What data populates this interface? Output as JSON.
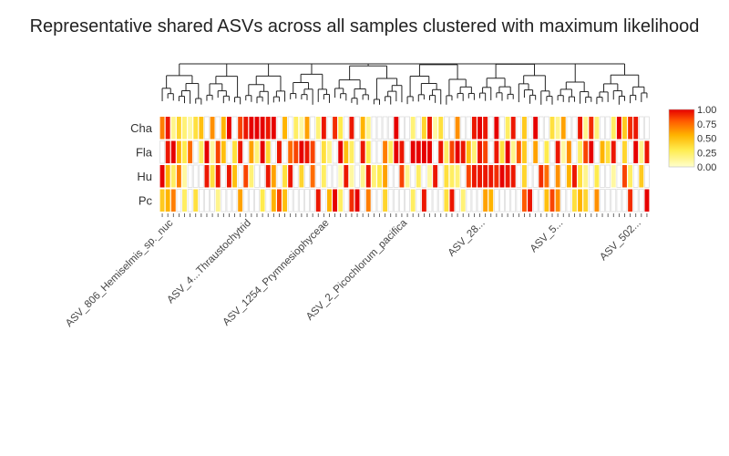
{
  "chart_data": {
    "type": "heatmap",
    "title": "Representative shared ASVs across all samples clustered with maximum likelihood",
    "xlabel": "",
    "ylabel": "",
    "rows": [
      "Cha",
      "Fla",
      "Hu",
      "Pc"
    ],
    "n_columns": 88,
    "column_labels": [
      "ASV_806_Hemiselmis_sp._nuc",
      "ASV_4...Thraustochytrid",
      "ASV_1254_Prymnesiophyceae",
      "ASV_2_Picochlorum_pacifica",
      "ASV_28...",
      "ASV_5...",
      "ASV_502..."
    ],
    "values": [
      [
        0.7,
        0.95,
        0.15,
        0.4,
        0.2,
        0.1,
        0.35,
        0.5,
        0.0,
        0.65,
        0.0,
        0.55,
        1.0,
        0.0,
        0.85,
        0.95,
        1.0,
        1.0,
        1.0,
        0.95,
        1.0,
        0.0,
        0.55,
        0.0,
        0.25,
        0.1,
        0.6,
        0.0,
        0.2,
        0.95,
        0.0,
        0.9,
        0.3,
        0.0,
        0.95,
        0.0,
        0.55,
        0.15,
        0.0,
        0.0,
        0.0,
        0.0,
        1.0,
        0.0,
        0.0,
        0.2,
        0.0,
        0.4,
        0.95,
        0.1,
        0.35,
        0.0,
        0.0,
        0.65,
        0.0,
        0.0,
        0.95,
        1.0,
        0.95,
        0.0,
        1.0,
        0.0,
        0.25,
        0.95,
        0.0,
        0.45,
        0.0,
        1.0,
        0.0,
        0.0,
        0.35,
        0.15,
        0.6,
        0.0,
        0.0,
        0.95,
        0.15,
        0.9,
        0.2,
        0.0,
        0.0,
        0.25,
        1.0,
        0.45,
        0.9,
        0.95,
        0.0,
        0.0
      ],
      [
        0.0,
        0.95,
        1.0,
        0.55,
        0.3,
        0.75,
        0.0,
        0.25,
        1.0,
        0.1,
        0.85,
        0.5,
        0.0,
        0.35,
        0.95,
        0.0,
        0.6,
        0.2,
        1.0,
        0.4,
        0.0,
        0.95,
        0.0,
        0.75,
        0.85,
        1.0,
        0.95,
        0.85,
        0.0,
        0.35,
        0.15,
        0.0,
        1.0,
        0.5,
        0.25,
        0.0,
        0.95,
        0.3,
        0.0,
        0.0,
        0.7,
        0.25,
        1.0,
        0.95,
        0.0,
        1.0,
        1.0,
        1.0,
        1.0,
        0.0,
        0.95,
        0.25,
        0.85,
        1.0,
        0.95,
        0.5,
        0.2,
        0.95,
        0.85,
        0.0,
        0.95,
        0.35,
        1.0,
        0.15,
        0.8,
        0.45,
        0.0,
        0.6,
        0.0,
        0.3,
        0.0,
        0.95,
        0.1,
        0.65,
        0.0,
        0.25,
        0.85,
        1.0,
        0.0,
        0.55,
        0.35,
        0.95,
        0.0,
        0.4,
        0.0,
        1.0,
        0.15,
        0.95
      ],
      [
        1.0,
        0.55,
        0.25,
        0.7,
        0.1,
        0.0,
        0.0,
        0.0,
        0.95,
        0.35,
        0.95,
        0.0,
        0.95,
        0.5,
        0.0,
        0.85,
        0.2,
        0.0,
        0.0,
        0.95,
        0.6,
        0.0,
        0.35,
        0.95,
        0.0,
        0.4,
        0.0,
        0.75,
        0.0,
        0.25,
        0.0,
        0.0,
        0.05,
        0.95,
        0.1,
        0.0,
        0.15,
        0.95,
        0.2,
        0.3,
        0.6,
        0.0,
        0.0,
        0.85,
        0.15,
        0.0,
        0.25,
        0.0,
        0.1,
        0.95,
        0.0,
        0.35,
        0.25,
        0.2,
        0.0,
        0.85,
        0.95,
        0.95,
        0.95,
        0.95,
        0.9,
        1.0,
        0.95,
        0.95,
        0.0,
        0.4,
        0.0,
        0.0,
        0.9,
        0.75,
        0.0,
        0.65,
        0.0,
        0.55,
        0.95,
        0.35,
        0.15,
        0.0,
        0.3,
        0.0,
        0.0,
        0.1,
        0.0,
        0.85,
        0.25,
        0.0,
        0.45,
        0.0
      ],
      [
        0.45,
        0.55,
        0.7,
        0.0,
        0.25,
        0.0,
        0.35,
        0.0,
        0.0,
        0.0,
        0.15,
        0.0,
        0.0,
        0.0,
        0.6,
        0.0,
        0.0,
        0.0,
        0.3,
        0.0,
        0.55,
        0.85,
        0.5,
        0.0,
        0.0,
        0.0,
        0.0,
        0.0,
        0.95,
        0.0,
        0.55,
        1.0,
        0.25,
        0.0,
        0.9,
        1.0,
        0.0,
        0.7,
        0.0,
        0.0,
        0.4,
        0.0,
        0.0,
        0.0,
        0.0,
        0.25,
        0.0,
        0.95,
        0.0,
        0.0,
        0.0,
        0.35,
        0.95,
        0.0,
        0.2,
        0.0,
        0.0,
        0.0,
        0.6,
        0.55,
        0.0,
        0.0,
        0.0,
        0.0,
        0.0,
        0.8,
        0.95,
        0.0,
        0.0,
        0.5,
        0.85,
        0.65,
        0.0,
        0.0,
        0.35,
        0.55,
        0.4,
        0.0,
        0.65,
        0.0,
        0.0,
        0.0,
        0.0,
        0.0,
        0.9,
        0.0,
        0.0,
        1.0
      ]
    ],
    "colorscale": [
      [
        0.0,
        "#ffffcc"
      ],
      [
        0.3,
        "#ffeb4d"
      ],
      [
        0.55,
        "#ffb400"
      ],
      [
        0.8,
        "#ff5a00"
      ],
      [
        1.0,
        "#e60000"
      ]
    ],
    "colorbar": {
      "range": [
        0,
        1
      ],
      "ticks": [
        "0.00",
        "0.25",
        "0.50",
        "0.75",
        "1.00"
      ]
    },
    "dendrogram": true,
    "legend": "right",
    "grid": false
  }
}
